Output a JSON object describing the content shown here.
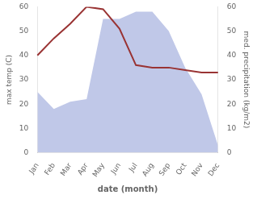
{
  "chart_data": {
    "type": "line",
    "xlabel": "date (month)",
    "ylabel": "max temp (C)",
    "y2label": "med. precipitation (kg/m2)",
    "categories": [
      "Jan",
      "Feb",
      "Mar",
      "Apr",
      "May",
      "Jun",
      "Jul",
      "Aug",
      "Sep",
      "Oct",
      "Nov",
      "Dec"
    ],
    "series": [
      {
        "type": "area",
        "color": "#c0c8e8",
        "values": [
          25,
          18,
          21,
          22,
          55,
          55,
          58,
          58,
          50,
          35,
          24,
          3
        ]
      },
      {
        "type": "line",
        "color": "#993333",
        "axis": "y2",
        "values": [
          40,
          47,
          53,
          60,
          59,
          51,
          36,
          35,
          35,
          34,
          33,
          33
        ]
      }
    ],
    "ylim": [
      0,
      60
    ],
    "yticks": [
      0,
      10,
      20,
      30,
      40,
      50,
      60
    ],
    "y2lim": [
      0,
      60
    ],
    "y2ticks": [
      0,
      10,
      20,
      30,
      40,
      50,
      60
    ],
    "grid": false
  }
}
